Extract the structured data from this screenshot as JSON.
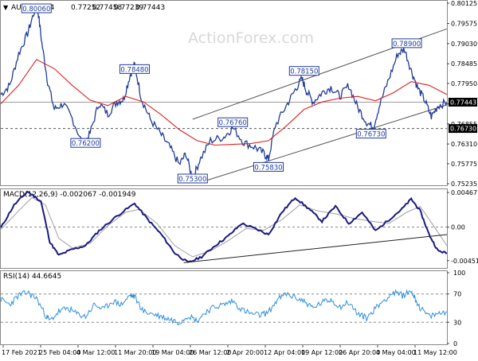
{
  "chart_data": [
    {
      "type": "line",
      "panel": "price",
      "instrument": "AUDUSD,H4",
      "ohlc": [
        "0.77252",
        "0.77458",
        "0.77239",
        "0.77443"
      ],
      "watermark": "ActionForex.com",
      "ylim": [
        0.75235,
        0.80125
      ],
      "yticks": [
        "0.80125",
        "0.79575",
        "0.79030",
        "0.78485",
        "0.77950",
        "0.77395",
        "0.76855",
        "0.76310",
        "0.75775",
        "0.75235"
      ],
      "current_price": "0.77443",
      "level_price": "0.76730",
      "level_value": 0.7673,
      "annotations": [
        {
          "label": "0.80060",
          "x": 0.08,
          "y": 0.8006
        },
        {
          "label": "0.78480",
          "x": 0.3,
          "y": 0.7848
        },
        {
          "label": "0.76200",
          "x": 0.19,
          "y": 0.762
        },
        {
          "label": "0.75300",
          "x": 0.43,
          "y": 0.753
        },
        {
          "label": "0.76760",
          "x": 0.52,
          "y": 0.7676
        },
        {
          "label": "0.75830",
          "x": 0.6,
          "y": 0.7583
        },
        {
          "label": "0.78150",
          "x": 0.68,
          "y": 0.7815
        },
        {
          "label": "0.76730",
          "x": 0.83,
          "y": 0.7673
        },
        {
          "label": "0.78900",
          "x": 0.91,
          "y": 0.789
        }
      ],
      "price_path": [
        [
          0.0,
          0.7765
        ],
        [
          0.02,
          0.779
        ],
        [
          0.04,
          0.7875
        ],
        [
          0.06,
          0.793
        ],
        [
          0.075,
          0.799
        ],
        [
          0.082,
          0.8006
        ],
        [
          0.092,
          0.7905
        ],
        [
          0.105,
          0.78
        ],
        [
          0.12,
          0.7725
        ],
        [
          0.14,
          0.774
        ],
        [
          0.16,
          0.77
        ],
        [
          0.185,
          0.7628
        ],
        [
          0.2,
          0.766
        ],
        [
          0.22,
          0.7742
        ],
        [
          0.24,
          0.7712
        ],
        [
          0.26,
          0.7745
        ],
        [
          0.275,
          0.7752
        ],
        [
          0.29,
          0.7818
        ],
        [
          0.3,
          0.7846
        ],
        [
          0.315,
          0.7755
        ],
        [
          0.335,
          0.7698
        ],
        [
          0.36,
          0.7655
        ],
        [
          0.38,
          0.762
        ],
        [
          0.4,
          0.7575
        ],
        [
          0.415,
          0.7605
        ],
        [
          0.43,
          0.7535
        ],
        [
          0.445,
          0.7585
        ],
        [
          0.47,
          0.764
        ],
        [
          0.5,
          0.765
        ],
        [
          0.52,
          0.7675
        ],
        [
          0.545,
          0.7635
        ],
        [
          0.57,
          0.7622
        ],
        [
          0.59,
          0.7605
        ],
        [
          0.6,
          0.759
        ],
        [
          0.615,
          0.768
        ],
        [
          0.64,
          0.7735
        ],
        [
          0.66,
          0.7778
        ],
        [
          0.675,
          0.7808
        ],
        [
          0.685,
          0.7775
        ],
        [
          0.7,
          0.7745
        ],
        [
          0.72,
          0.777
        ],
        [
          0.74,
          0.7785
        ],
        [
          0.76,
          0.776
        ],
        [
          0.78,
          0.779
        ],
        [
          0.8,
          0.773
        ],
        [
          0.82,
          0.769
        ],
        [
          0.835,
          0.7676
        ],
        [
          0.85,
          0.774
        ],
        [
          0.87,
          0.7808
        ],
        [
          0.89,
          0.7875
        ],
        [
          0.905,
          0.7888
        ],
        [
          0.92,
          0.783
        ],
        [
          0.935,
          0.7782
        ],
        [
          0.95,
          0.775
        ],
        [
          0.965,
          0.7705
        ],
        [
          0.98,
          0.7735
        ],
        [
          1.0,
          0.7744
        ]
      ],
      "ma_path": [
        [
          0.0,
          0.774
        ],
        [
          0.04,
          0.779
        ],
        [
          0.08,
          0.786
        ],
        [
          0.12,
          0.7835
        ],
        [
          0.16,
          0.779
        ],
        [
          0.2,
          0.775
        ],
        [
          0.24,
          0.7735
        ],
        [
          0.28,
          0.776
        ],
        [
          0.32,
          0.7745
        ],
        [
          0.36,
          0.771
        ],
        [
          0.4,
          0.767
        ],
        [
          0.44,
          0.764
        ],
        [
          0.48,
          0.7628
        ],
        [
          0.52,
          0.763
        ],
        [
          0.56,
          0.7632
        ],
        [
          0.6,
          0.764
        ],
        [
          0.64,
          0.768
        ],
        [
          0.68,
          0.7725
        ],
        [
          0.72,
          0.7745
        ],
        [
          0.76,
          0.7755
        ],
        [
          0.8,
          0.776
        ],
        [
          0.84,
          0.7748
        ],
        [
          0.88,
          0.777
        ],
        [
          0.92,
          0.78
        ],
        [
          0.96,
          0.779
        ],
        [
          1.0,
          0.7765
        ]
      ],
      "channel_upper": [
        [
          0.43,
          0.7698
        ],
        [
          1.0,
          0.7943
        ]
      ],
      "channel_lower": [
        [
          0.46,
          0.7532
        ],
        [
          1.0,
          0.7737
        ]
      ]
    },
    {
      "type": "line",
      "panel": "macd",
      "label": "MACD(12,26,9) -0.002067 -0.001949",
      "ylim": [
        -0.0054,
        0.0049
      ],
      "yticks": [
        "0.004677",
        "0.00",
        "-0.004519"
      ],
      "macd_path": [
        [
          0.0,
          -0.0001
        ],
        [
          0.03,
          0.003
        ],
        [
          0.06,
          0.0048
        ],
        [
          0.09,
          0.0035
        ],
        [
          0.11,
          -0.002
        ],
        [
          0.13,
          -0.0038
        ],
        [
          0.16,
          -0.003
        ],
        [
          0.19,
          -0.0025
        ],
        [
          0.22,
          -0.0005
        ],
        [
          0.26,
          0.0015
        ],
        [
          0.3,
          0.0032
        ],
        [
          0.33,
          0.001
        ],
        [
          0.36,
          -0.001
        ],
        [
          0.39,
          -0.0035
        ],
        [
          0.42,
          -0.0048
        ],
        [
          0.45,
          -0.004
        ],
        [
          0.48,
          -0.0025
        ],
        [
          0.51,
          -0.0012
        ],
        [
          0.54,
          0.0005
        ],
        [
          0.57,
          -0.0002
        ],
        [
          0.6,
          -0.001
        ],
        [
          0.63,
          0.002
        ],
        [
          0.66,
          0.004
        ],
        [
          0.69,
          0.0025
        ],
        [
          0.72,
          0.0008
        ],
        [
          0.75,
          0.0028
        ],
        [
          0.78,
          0.0005
        ],
        [
          0.81,
          0.002
        ],
        [
          0.84,
          -0.0005
        ],
        [
          0.87,
          0.001
        ],
        [
          0.9,
          0.0025
        ],
        [
          0.92,
          0.0038
        ],
        [
          0.94,
          0.0022
        ],
        [
          0.96,
          -0.001
        ],
        [
          0.98,
          -0.0032
        ],
        [
          1.0,
          -0.0035
        ]
      ],
      "signal_path": [
        [
          0.0,
          -0.0003
        ],
        [
          0.04,
          0.0022
        ],
        [
          0.07,
          0.004
        ],
        [
          0.1,
          0.003
        ],
        [
          0.13,
          -0.0015
        ],
        [
          0.16,
          -0.0028
        ],
        [
          0.2,
          -0.0022
        ],
        [
          0.24,
          0.0002
        ],
        [
          0.28,
          0.002
        ],
        [
          0.31,
          0.0024
        ],
        [
          0.35,
          0.0005
        ],
        [
          0.39,
          -0.0025
        ],
        [
          0.43,
          -0.004
        ],
        [
          0.47,
          -0.0032
        ],
        [
          0.51,
          -0.0018
        ],
        [
          0.55,
          -0.0002
        ],
        [
          0.59,
          -0.0004
        ],
        [
          0.63,
          0.001
        ],
        [
          0.67,
          0.003
        ],
        [
          0.71,
          0.0022
        ],
        [
          0.75,
          0.0018
        ],
        [
          0.79,
          0.0012
        ],
        [
          0.83,
          0.0008
        ],
        [
          0.87,
          0.0005
        ],
        [
          0.91,
          0.002
        ],
        [
          0.94,
          0.0028
        ],
        [
          0.97,
          0.0002
        ],
        [
          1.0,
          -0.0025
        ]
      ],
      "trendline": [
        [
          0.41,
          -0.0048
        ],
        [
          1.0,
          -0.001
        ]
      ]
    },
    {
      "type": "line",
      "panel": "rsi",
      "label": "RSI(14) 44.6645",
      "ylim": [
        0,
        100
      ],
      "yticks": [
        "100",
        "70",
        "30",
        "0"
      ],
      "levels": [
        70,
        30
      ],
      "rsi_path": [
        [
          0.0,
          62
        ],
        [
          0.02,
          55
        ],
        [
          0.04,
          68
        ],
        [
          0.06,
          72
        ],
        [
          0.08,
          64
        ],
        [
          0.1,
          40
        ],
        [
          0.11,
          32
        ],
        [
          0.13,
          45
        ],
        [
          0.15,
          50
        ],
        [
          0.17,
          42
        ],
        [
          0.19,
          38
        ],
        [
          0.21,
          55
        ],
        [
          0.23,
          48
        ],
        [
          0.25,
          60
        ],
        [
          0.27,
          55
        ],
        [
          0.29,
          68
        ],
        [
          0.3,
          66
        ],
        [
          0.32,
          45
        ],
        [
          0.34,
          42
        ],
        [
          0.36,
          38
        ],
        [
          0.38,
          34
        ],
        [
          0.4,
          30
        ],
        [
          0.42,
          40
        ],
        [
          0.44,
          32
        ],
        [
          0.46,
          45
        ],
        [
          0.48,
          52
        ],
        [
          0.5,
          55
        ],
        [
          0.52,
          60
        ],
        [
          0.54,
          48
        ],
        [
          0.56,
          42
        ],
        [
          0.58,
          40
        ],
        [
          0.6,
          44
        ],
        [
          0.62,
          62
        ],
        [
          0.64,
          70
        ],
        [
          0.66,
          65
        ],
        [
          0.68,
          60
        ],
        [
          0.7,
          50
        ],
        [
          0.72,
          58
        ],
        [
          0.74,
          62
        ],
        [
          0.76,
          52
        ],
        [
          0.78,
          58
        ],
        [
          0.8,
          42
        ],
        [
          0.82,
          36
        ],
        [
          0.84,
          50
        ],
        [
          0.86,
          62
        ],
        [
          0.88,
          72
        ],
        [
          0.9,
          68
        ],
        [
          0.92,
          74
        ],
        [
          0.93,
          62
        ],
        [
          0.94,
          50
        ],
        [
          0.96,
          38
        ],
        [
          0.98,
          42
        ],
        [
          1.0,
          45
        ]
      ]
    }
  ],
  "x_axis": {
    "labels": [
      "17 Feb 2021",
      "25 Feb 04:00",
      "4 Mar 12:00",
      "11 Mar 20:00",
      "19 Mar 04:00",
      "26 Mar 12:00",
      "2 Apr 20:00",
      "12 Apr 04:00",
      "19 Apr 12:00",
      "26 Apr 20:00",
      "4 May 04:00",
      "11 May 12:00"
    ]
  },
  "colors": {
    "price": "#1f3c99",
    "ma": "#e02020",
    "channel": "#555555",
    "macd": "#1a1a80",
    "signal": "#a0a0a0",
    "trendline": "#222222",
    "rsi": "#2f8fdf",
    "label_border": "#1f3c99",
    "current_tag": "#000000",
    "level_tag": "#000000",
    "grid": "#888888"
  }
}
